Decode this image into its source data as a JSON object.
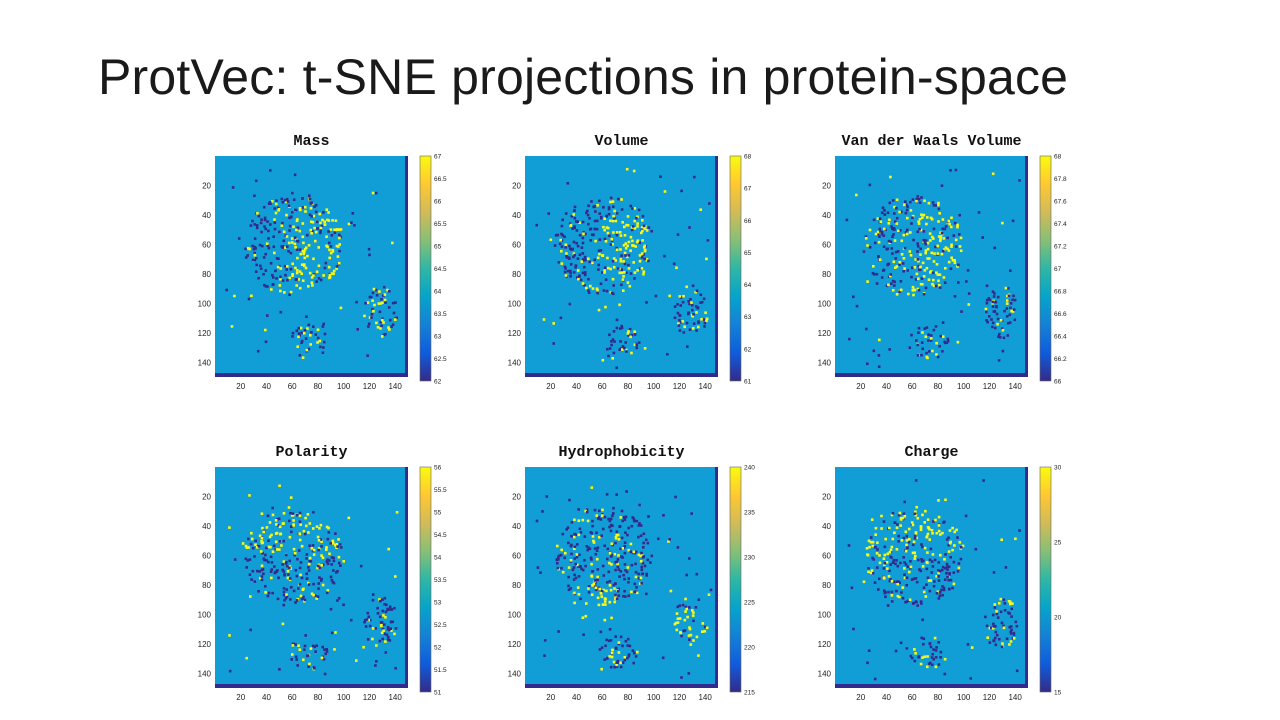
{
  "slide": {
    "title": "ProtVec: t-SNE projections in protein-space"
  },
  "colors": {
    "background": "#119ed6",
    "low": "#322a8c",
    "high": "#f9fa14",
    "colormap": [
      "#352a87",
      "#0f5cdd",
      "#1481d6",
      "#06a4ca",
      "#2eb7a4",
      "#87bf77",
      "#d1bb59",
      "#fec832",
      "#f9fb0e"
    ]
  },
  "chart_data": [
    {
      "type": "heatmap",
      "title": "Mass",
      "xlim": [
        0,
        150
      ],
      "ylim": [
        0,
        150
      ],
      "x_ticks": [
        "20",
        "40",
        "60",
        "80",
        "100",
        "120",
        "140"
      ],
      "y_ticks": [
        "20",
        "40",
        "60",
        "80",
        "100",
        "120",
        "140"
      ],
      "colorbar": {
        "range": [
          62,
          67
        ],
        "ticks": [
          "67",
          "66.5",
          "66",
          "65.5",
          "65",
          "64.5",
          "64",
          "63.5",
          "63",
          "62.5",
          "62"
        ]
      }
    },
    {
      "type": "heatmap",
      "title": "Volume",
      "xlim": [
        0,
        150
      ],
      "ylim": [
        0,
        150
      ],
      "x_ticks": [
        "20",
        "40",
        "60",
        "80",
        "100",
        "120",
        "140"
      ],
      "y_ticks": [
        "20",
        "40",
        "60",
        "80",
        "100",
        "120",
        "140"
      ],
      "colorbar": {
        "range": [
          61,
          68
        ],
        "ticks": [
          "68",
          "67",
          "66",
          "65",
          "64",
          "63",
          "62",
          "61"
        ]
      }
    },
    {
      "type": "heatmap",
      "title": "Van der Waals Volume",
      "xlim": [
        0,
        150
      ],
      "ylim": [
        0,
        150
      ],
      "x_ticks": [
        "20",
        "40",
        "60",
        "80",
        "100",
        "120",
        "140"
      ],
      "y_ticks": [
        "20",
        "40",
        "60",
        "80",
        "100",
        "120",
        "140"
      ],
      "colorbar": {
        "range": [
          66,
          68
        ],
        "ticks": [
          "68",
          "67.8",
          "67.6",
          "67.4",
          "67.2",
          "67",
          "66.8",
          "66.6",
          "66.4",
          "66.2",
          "66"
        ]
      }
    },
    {
      "type": "heatmap",
      "title": "Polarity",
      "xlim": [
        0,
        150
      ],
      "ylim": [
        0,
        150
      ],
      "x_ticks": [
        "20",
        "40",
        "60",
        "80",
        "100",
        "120",
        "140"
      ],
      "y_ticks": [
        "20",
        "40",
        "60",
        "80",
        "100",
        "120",
        "140"
      ],
      "colorbar": {
        "range": [
          51,
          56
        ],
        "ticks": [
          "56",
          "55.5",
          "55",
          "54.5",
          "54",
          "53.5",
          "53",
          "52.5",
          "52",
          "51.5",
          "51"
        ]
      }
    },
    {
      "type": "heatmap",
      "title": "Hydrophobicity",
      "xlim": [
        0,
        150
      ],
      "ylim": [
        0,
        150
      ],
      "x_ticks": [
        "20",
        "40",
        "60",
        "80",
        "100",
        "120",
        "140"
      ],
      "y_ticks": [
        "20",
        "40",
        "60",
        "80",
        "100",
        "120",
        "140"
      ],
      "colorbar": {
        "range": [
          215,
          240
        ],
        "ticks": [
          "240",
          "235",
          "230",
          "225",
          "220",
          "215"
        ]
      }
    },
    {
      "type": "heatmap",
      "title": "Charge",
      "xlim": [
        0,
        150
      ],
      "ylim": [
        0,
        150
      ],
      "x_ticks": [
        "20",
        "40",
        "60",
        "80",
        "100",
        "120",
        "140"
      ],
      "y_ticks": [
        "20",
        "40",
        "60",
        "80",
        "100",
        "120",
        "140"
      ],
      "colorbar": {
        "range": [
          15,
          30
        ],
        "ticks": [
          "30",
          "25",
          "20",
          "15"
        ]
      }
    }
  ]
}
